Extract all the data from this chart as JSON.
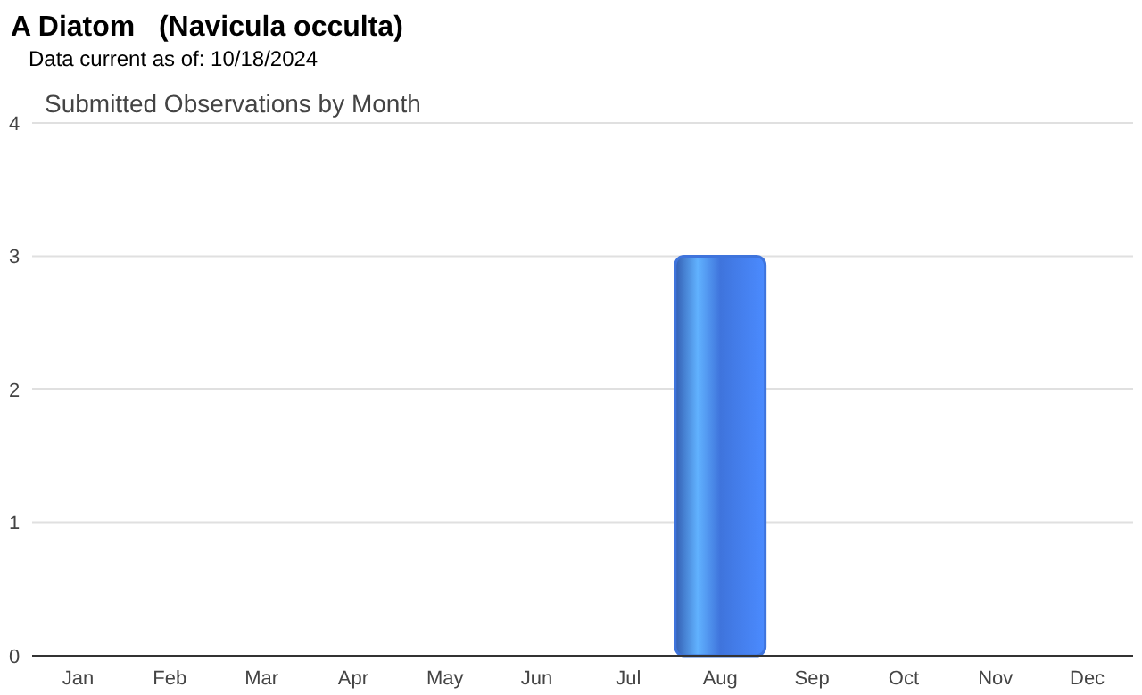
{
  "chart_data": {
    "type": "bar",
    "title": "A Diatom   (Navicula occulta)",
    "subtitle": "Data current as of: 10/18/2024",
    "annotations": [
      "Submitted Observations by Month"
    ],
    "categories": [
      "Jan",
      "Feb",
      "Mar",
      "Apr",
      "May",
      "Jun",
      "Jul",
      "Aug",
      "Sep",
      "Oct",
      "Nov",
      "Dec"
    ],
    "values": [
      0,
      0,
      0,
      0,
      0,
      0,
      0,
      3,
      0,
      0,
      0,
      0
    ],
    "color": "#3f74dc",
    "ylim": [
      0,
      4
    ],
    "yticks": [
      0,
      1,
      2,
      3,
      4
    ],
    "grid": "y"
  }
}
